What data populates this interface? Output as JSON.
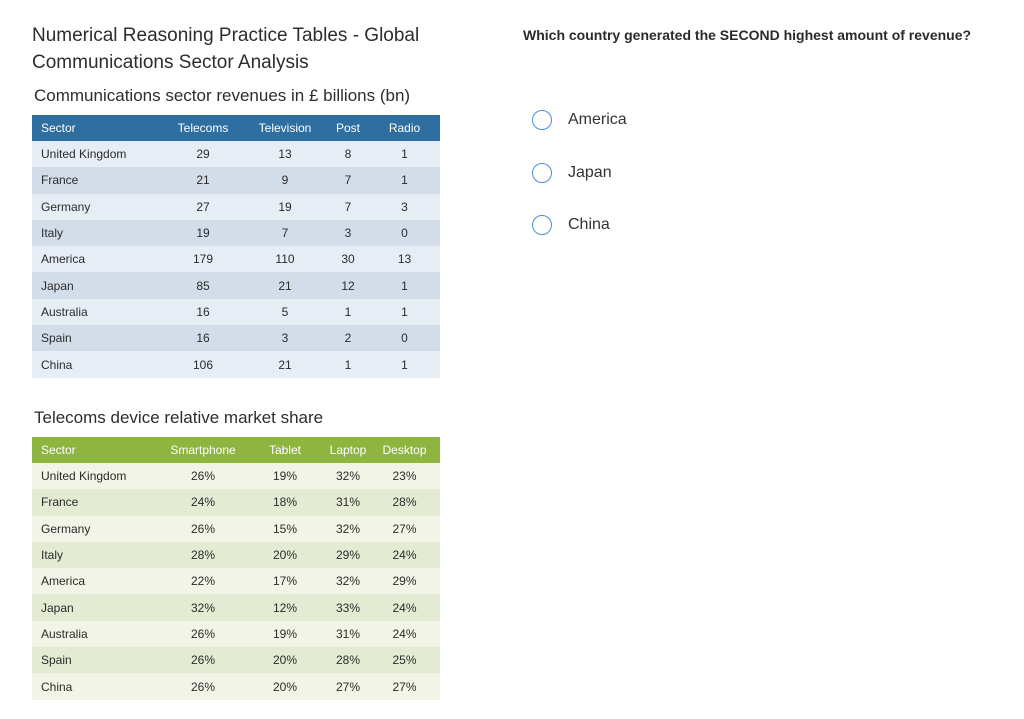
{
  "page": {
    "title": "Numerical Reasoning Practice Tables - Global Communications Sector Analysis"
  },
  "revenue_table": {
    "caption": "Communications sector revenues in £ billions (bn)",
    "headers": [
      "Sector",
      "Telecoms",
      "Television",
      "Post",
      "Radio"
    ],
    "rows": [
      [
        "United Kingdom",
        "29",
        "13",
        "8",
        "1"
      ],
      [
        "France",
        "21",
        "9",
        "7",
        "1"
      ],
      [
        "Germany",
        "27",
        "19",
        "7",
        "3"
      ],
      [
        "Italy",
        "19",
        "7",
        "3",
        "0"
      ],
      [
        "America",
        "179",
        "110",
        "30",
        "13"
      ],
      [
        "Japan",
        "85",
        "21",
        "12",
        "1"
      ],
      [
        "Australia",
        "16",
        "5",
        "1",
        "1"
      ],
      [
        "Spain",
        "16",
        "3",
        "2",
        "0"
      ],
      [
        "China",
        "106",
        "21",
        "1",
        "1"
      ]
    ],
    "header_color": "#2f6ea0"
  },
  "share_table": {
    "caption": "Telecoms device relative market share",
    "headers": [
      "Sector",
      "Smartphone",
      "Tablet",
      "Laptop",
      "Desktop"
    ],
    "rows": [
      [
        "United Kingdom",
        "26%",
        "19%",
        "32%",
        "23%"
      ],
      [
        "France",
        "24%",
        "18%",
        "31%",
        "28%"
      ],
      [
        "Germany",
        "26%",
        "15%",
        "32%",
        "27%"
      ],
      [
        "Italy",
        "28%",
        "20%",
        "29%",
        "24%"
      ],
      [
        "America",
        "22%",
        "17%",
        "32%",
        "29%"
      ],
      [
        "Japan",
        "32%",
        "12%",
        "33%",
        "24%"
      ],
      [
        "Australia",
        "26%",
        "19%",
        "31%",
        "24%"
      ],
      [
        "Spain",
        "26%",
        "20%",
        "28%",
        "25%"
      ],
      [
        "China",
        "26%",
        "20%",
        "27%",
        "27%"
      ]
    ],
    "header_color": "#8db53f"
  },
  "question": {
    "text": "Which country generated the SECOND highest amount of revenue?",
    "options": [
      "America",
      "Japan",
      "China"
    ],
    "radio_color": "#4a90d9"
  }
}
